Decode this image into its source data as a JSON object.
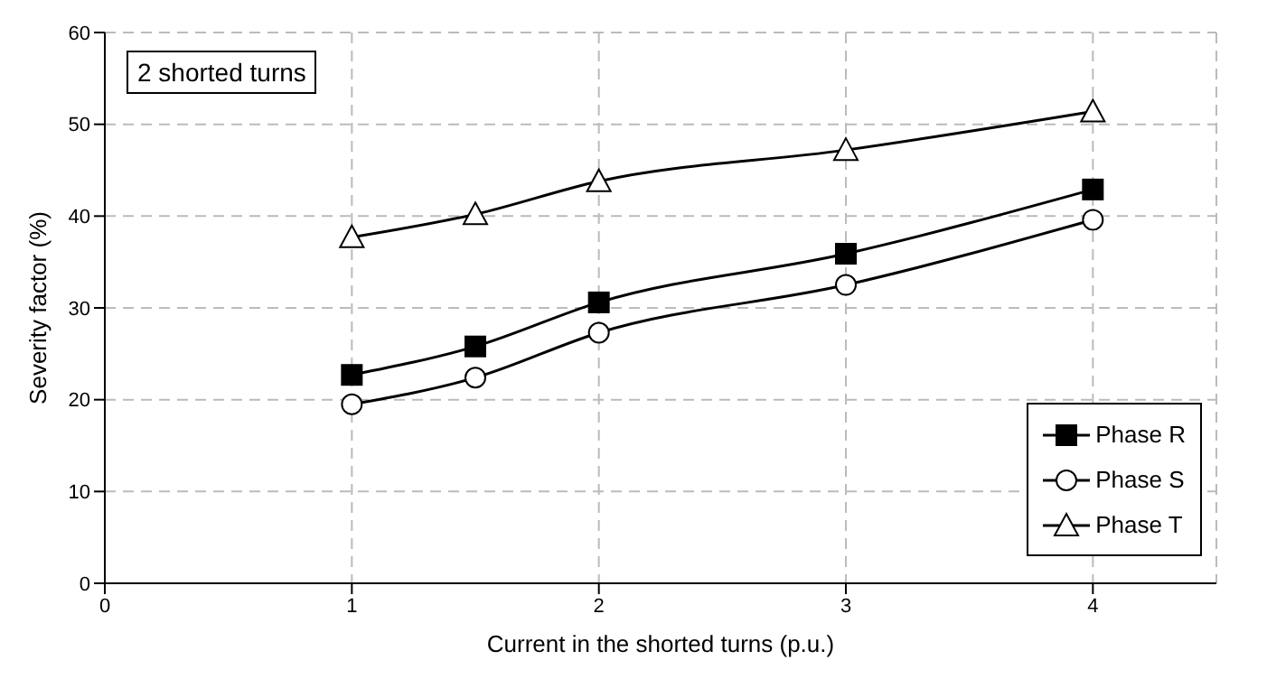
{
  "chart_data": {
    "type": "line",
    "xlabel": "Current in the shorted turns (p.u.)",
    "ylabel": "Severity factor (%)",
    "annotations": [
      "2 shorted turns"
    ],
    "x": [
      1,
      1.5,
      2,
      3,
      4
    ],
    "series": [
      {
        "name": "Phase R",
        "color": "#000000",
        "marker": "square",
        "values": [
          22.7,
          25.8,
          30.6,
          35.9,
          42.9
        ]
      },
      {
        "name": "Phase S",
        "color": "#000000",
        "marker": "circle",
        "values": [
          19.5,
          22.4,
          27.3,
          32.5,
          39.6
        ]
      },
      {
        "name": "Phase T",
        "color": "#000000",
        "marker": "triangle",
        "values": [
          37.7,
          40.2,
          43.8,
          47.2,
          51.4
        ]
      }
    ],
    "xlim": [
      0,
      4.5
    ],
    "xticks": [
      0,
      1,
      2,
      3,
      4
    ],
    "ylim": [
      0,
      60
    ],
    "yticks": [
      0,
      10,
      20,
      30,
      40,
      50,
      60
    ],
    "grid": true,
    "legend": "bottom right",
    "line_style": "solid"
  }
}
